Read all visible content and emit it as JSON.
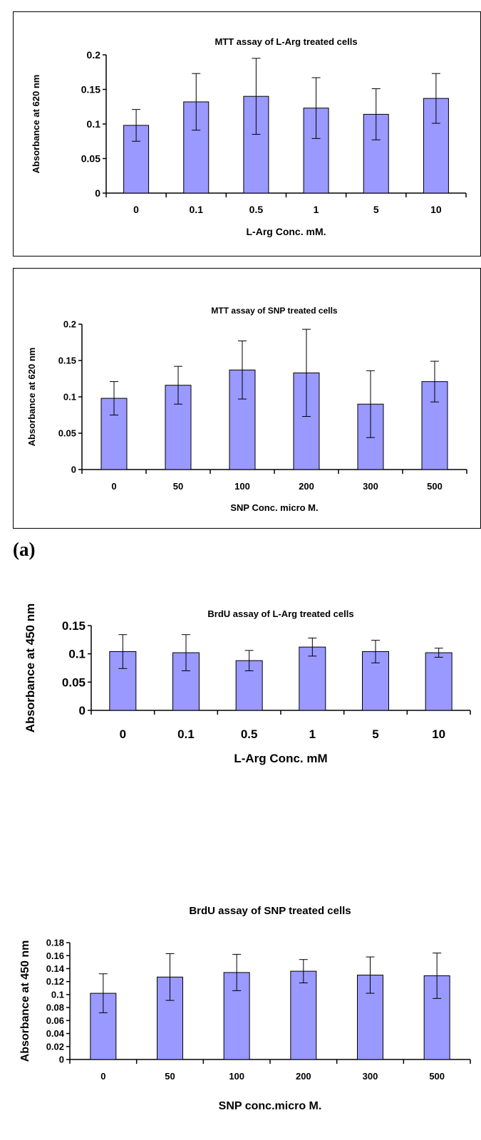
{
  "panel_label": "(a)",
  "chart_data": [
    {
      "type": "bar",
      "title": "MTT assay of L-Arg treated cells",
      "xlabel": "L-Arg Conc. mM.",
      "ylabel": "Absorbance at 620 nm",
      "categories": [
        "0",
        "0.1",
        "0.5",
        "1",
        "5",
        "10"
      ],
      "values": [
        0.098,
        0.132,
        0.14,
        0.123,
        0.114,
        0.137
      ],
      "errors": [
        0.023,
        0.041,
        0.055,
        0.044,
        0.037,
        0.036
      ],
      "ylim": [
        0,
        0.2
      ],
      "yticks": [
        "0",
        "0.05",
        "0.1",
        "0.15",
        "0.2"
      ],
      "bar_color": "#9999ff",
      "grid": false
    },
    {
      "type": "bar",
      "title": "MTT assay of SNP treated cells",
      "xlabel": "SNP Conc. micro M.",
      "ylabel": "Absorbance at 620 nm",
      "categories": [
        "0",
        "50",
        "100",
        "200",
        "300",
        "500"
      ],
      "values": [
        0.098,
        0.116,
        0.137,
        0.133,
        0.09,
        0.121
      ],
      "errors": [
        0.023,
        0.026,
        0.04,
        0.06,
        0.046,
        0.028
      ],
      "ylim": [
        0,
        0.2
      ],
      "yticks": [
        "0",
        "0.05",
        "0.1",
        "0.15",
        "0.2"
      ],
      "bar_color": "#9999ff",
      "grid": false
    },
    {
      "type": "bar",
      "title": "BrdU assay of L-Arg treated cells",
      "xlabel": "L-Arg Conc. mM",
      "ylabel": "Absorbance at 450 nm",
      "categories": [
        "0",
        "0.1",
        "0.5",
        "1",
        "5",
        "10"
      ],
      "values": [
        0.104,
        0.102,
        0.088,
        0.112,
        0.104,
        0.102
      ],
      "errors": [
        0.03,
        0.032,
        0.018,
        0.016,
        0.02,
        0.008
      ],
      "ylim": [
        0,
        0.15
      ],
      "yticks": [
        "0",
        "0.05",
        "0.1",
        "0.15"
      ],
      "bar_color": "#9999ff",
      "grid": false
    },
    {
      "type": "bar",
      "title": "BrdU assay of SNP treated cells",
      "xlabel": "SNP conc.micro M.",
      "ylabel": "Absorbance at 450 nm",
      "categories": [
        "0",
        "50",
        "100",
        "200",
        "300",
        "500"
      ],
      "values": [
        0.102,
        0.127,
        0.134,
        0.136,
        0.13,
        0.129
      ],
      "errors": [
        0.03,
        0.036,
        0.028,
        0.018,
        0.028,
        0.035
      ],
      "ylim": [
        0,
        0.18
      ],
      "yticks": [
        "0",
        "0.02",
        "0.04",
        "0.06",
        "0.08",
        "0.1",
        "0.12",
        "0.14",
        "0.16",
        "0.18"
      ],
      "bar_color": "#9999ff",
      "grid": false
    }
  ]
}
